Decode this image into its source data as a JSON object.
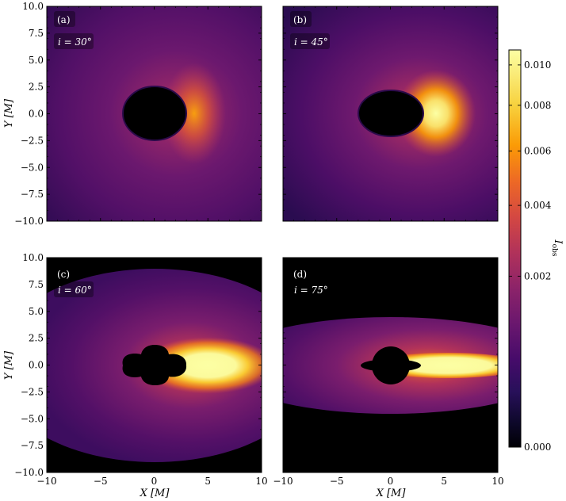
{
  "chart_data": {
    "type": "heatmap",
    "xlabel": "X [M]",
    "ylabel": "Y [M]",
    "xlim": [
      -10,
      10
    ],
    "ylim": [
      -10,
      10
    ],
    "xticks": [
      "−10",
      "−5",
      "0",
      "5",
      "10"
    ],
    "yticks": [
      "10.0",
      "7.5",
      "5.0",
      "2.5",
      "0.0",
      "−2.5",
      "−5.0",
      "−7.5",
      "−10.0"
    ],
    "colormap": "inferno",
    "colorbar": {
      "label": "I_obs",
      "label_main": "I",
      "label_sub": "obs",
      "range": [
        0.0,
        0.0108
      ],
      "scale": "sqrt",
      "ticks": [
        {
          "value": 0.0,
          "label": "0.000"
        },
        {
          "value": 0.002,
          "label": "0.002"
        },
        {
          "value": 0.004,
          "label": "0.004"
        },
        {
          "value": 0.006,
          "label": "0.006"
        },
        {
          "value": 0.008,
          "label": "0.008"
        },
        {
          "value": 0.01,
          "label": "0.010"
        }
      ]
    },
    "panels": [
      {
        "tag": "(a)",
        "inclination_text": "i = 30°",
        "inclination_deg": 30
      },
      {
        "tag": "(b)",
        "inclination_text": "i = 45°",
        "inclination_deg": 45
      },
      {
        "tag": "(c)",
        "inclination_text": "i = 60°",
        "inclination_deg": 60
      },
      {
        "tag": "(d)",
        "inclination_text": "i = 75°",
        "inclination_deg": 75
      }
    ]
  }
}
